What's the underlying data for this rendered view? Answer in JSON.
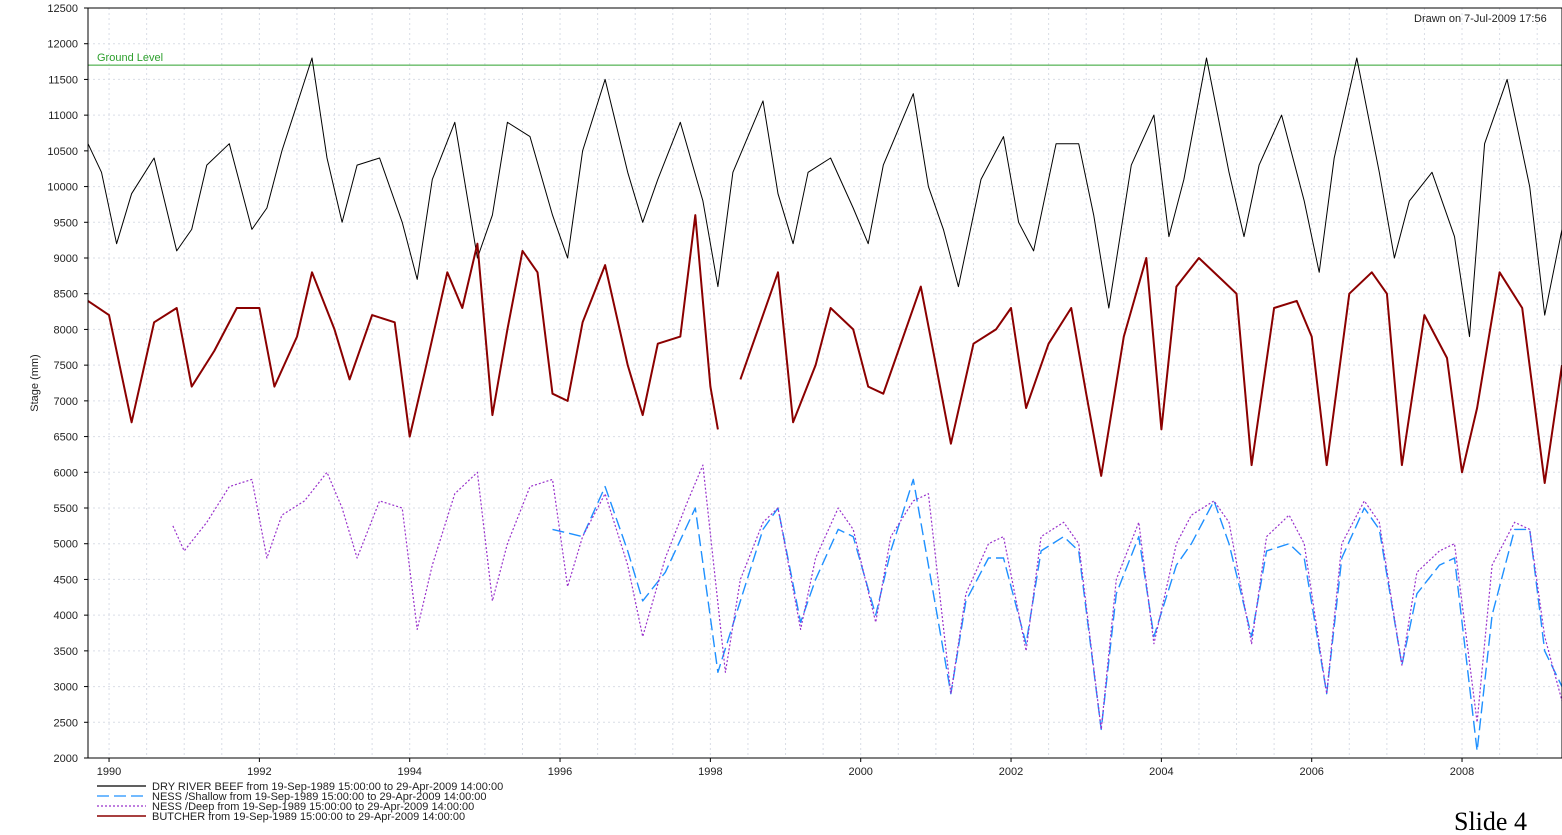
{
  "chart_data": {
    "type": "line",
    "ylabel": "Stage (mm)",
    "xlabel": "",
    "ylim": [
      2000,
      12500
    ],
    "xlim": [
      1989.72,
      2009.33
    ],
    "yticks": [
      "2000",
      "2500",
      "3000",
      "3500",
      "4000",
      "4500",
      "5000",
      "5500",
      "6000",
      "6500",
      "7000",
      "7500",
      "8000",
      "8500",
      "9000",
      "9500",
      "10000",
      "10500",
      "11000",
      "11500",
      "12000",
      "12500"
    ],
    "xticks": [
      "1990",
      "1992",
      "1994",
      "1996",
      "1998",
      "2000",
      "2002",
      "2004",
      "2006",
      "2008"
    ],
    "grid": true,
    "legend_position": "bottom-left",
    "drawn_on": "Drawn on  7-Jul-2009 17:56",
    "reference_line": {
      "label": "Ground Level",
      "value": 11700,
      "color": "#2ea02e"
    },
    "slide_label": "Slide 4",
    "series": [
      {
        "name": "DRY RIVER BEEF from 19-Sep-1989 15:00:00 to 29-Apr-2009 14:00:00",
        "color": "#000000",
        "style": "solid",
        "x": [
          1989.72,
          1989.9,
          1990.1,
          1990.3,
          1990.6,
          1990.9,
          1991.1,
          1991.3,
          1991.6,
          1991.9,
          1992.1,
          1992.3,
          1992.7,
          1992.9,
          1993.1,
          1993.3,
          1993.6,
          1993.9,
          1994.1,
          1994.3,
          1994.6,
          1994.9,
          1995.1,
          1995.3,
          1995.6,
          1995.9,
          1996.1,
          1996.3,
          1996.6,
          1996.9,
          1997.1,
          1997.3,
          1997.6,
          1997.9,
          1998.1,
          1998.3,
          1998.7,
          1998.9,
          1999.1,
          1999.3,
          1999.6,
          1999.9,
          2000.1,
          2000.3,
          2000.7,
          2000.9,
          2001.1,
          2001.3,
          2001.6,
          2001.9,
          2002.1,
          2002.3,
          2002.6,
          2002.9,
          2003.1,
          2003.3,
          2003.6,
          2003.9,
          2004.1,
          2004.3,
          2004.6,
          2004.9,
          2005.1,
          2005.3,
          2005.6,
          2005.9,
          2006.1,
          2006.3,
          2006.6,
          2006.9,
          2007.1,
          2007.3,
          2007.6,
          2007.9,
          2008.1,
          2008.3,
          2008.6,
          2008.9,
          2009.1,
          2009.33
        ],
        "y": [
          10600,
          10200,
          9200,
          9900,
          10400,
          9100,
          9400,
          10300,
          10600,
          9400,
          9700,
          10500,
          11800,
          10400,
          9500,
          10300,
          10400,
          9500,
          8700,
          10100,
          10900,
          9000,
          9600,
          10900,
          10700,
          9600,
          9000,
          10500,
          11500,
          10200,
          9500,
          10100,
          10900,
          9800,
          8600,
          10200,
          11200,
          9900,
          9200,
          10200,
          10400,
          9700,
          9200,
          10300,
          11300,
          10000,
          9400,
          8600,
          10100,
          10700,
          9500,
          9100,
          10600,
          10600,
          9600,
          8300,
          10300,
          11000,
          9300,
          10100,
          11800,
          10200,
          9300,
          10300,
          11000,
          9800,
          8800,
          10400,
          11800,
          10200,
          9000,
          9800,
          10200,
          9300,
          7900,
          10600,
          11500,
          10000,
          8200,
          9400
        ]
      },
      {
        "name": "NESS /Shallow from 19-Sep-1989 15:00:00 to 29-Apr-2009 14:00:00",
        "color": "#1e90ff",
        "style": "long-dash",
        "x": [
          1995.9,
          1996.1,
          1996.3,
          1996.6,
          1996.9,
          1997.1,
          1997.4,
          1997.8,
          1998.1,
          1998.4,
          1998.7,
          1998.9,
          1999.2,
          1999.4,
          1999.7,
          1999.9,
          2000.2,
          2000.4,
          2000.7,
          2000.9,
          2001.2,
          2001.4,
          2001.7,
          2001.9,
          2002.2,
          2002.4,
          2002.7,
          2002.9,
          2003.2,
          2003.4,
          2003.7,
          2003.9,
          2004.2,
          2004.4,
          2004.7,
          2004.9,
          2005.2,
          2005.4,
          2005.7,
          2005.9,
          2006.2,
          2006.4,
          2006.7,
          2006.9,
          2007.2,
          2007.4,
          2007.7,
          2007.9,
          2008.2,
          2008.4,
          2008.7,
          2008.9,
          2009.1,
          2009.33
        ],
        "y": [
          5200,
          5150,
          5100,
          5800,
          4900,
          4200,
          4600,
          5500,
          3200,
          4200,
          5200,
          5500,
          3900,
          4500,
          5200,
          5100,
          4000,
          4900,
          5900,
          4700,
          2900,
          4200,
          4800,
          4800,
          3600,
          4900,
          5100,
          4900,
          2400,
          4300,
          5100,
          3700,
          4700,
          5000,
          5600,
          5000,
          3700,
          4900,
          5000,
          4800,
          2900,
          4800,
          5500,
          5200,
          3300,
          4300,
          4700,
          4800,
          2100,
          4000,
          5200,
          5200,
          3500,
          3000
        ]
      },
      {
        "name": "NESS /Deep from 19-Sep-1989 15:00:00 to 29-Apr-2009 14:00:00",
        "color": "#9932cc",
        "style": "dotted",
        "x": [
          1990.85,
          1991.0,
          1991.3,
          1991.6,
          1991.9,
          1992.1,
          1992.3,
          1992.6,
          1992.9,
          1993.1,
          1993.3,
          1993.6,
          1993.9,
          1994.1,
          1994.3,
          1994.6,
          1994.9,
          1995.1,
          1995.3,
          1995.6,
          1995.9,
          1996.1,
          1996.3,
          1996.6,
          1996.9,
          1997.1,
          1997.4,
          1997.7,
          1997.9,
          1998.2,
          1998.4,
          1998.7,
          1998.9,
          1999.2,
          1999.4,
          1999.7,
          1999.9,
          2000.2,
          2000.4,
          2000.7,
          2000.9,
          2001.2,
          2001.4,
          2001.7,
          2001.9,
          2002.2,
          2002.4,
          2002.7,
          2002.9,
          2003.2,
          2003.4,
          2003.7,
          2003.9,
          2004.2,
          2004.4,
          2004.7,
          2004.9,
          2005.2,
          2005.4,
          2005.7,
          2005.9,
          2006.2,
          2006.4,
          2006.7,
          2006.9,
          2007.2,
          2007.4,
          2007.7,
          2007.9,
          2008.2,
          2008.4,
          2008.7,
          2008.9,
          2009.1,
          2009.33
        ],
        "y": [
          5250,
          4900,
          5300,
          5800,
          5900,
          4800,
          5400,
          5600,
          6000,
          5500,
          4800,
          5600,
          5500,
          3800,
          4700,
          5700,
          6000,
          4200,
          5000,
          5800,
          5900,
          4400,
          5100,
          5700,
          4700,
          3700,
          4800,
          5600,
          6100,
          3200,
          4500,
          5300,
          5500,
          3800,
          4800,
          5500,
          5200,
          3900,
          5100,
          5600,
          5700,
          2900,
          4300,
          5000,
          5100,
          3500,
          5100,
          5300,
          5000,
          2400,
          4500,
          5300,
          3600,
          5000,
          5400,
          5600,
          5300,
          3600,
          5100,
          5400,
          5000,
          2900,
          5000,
          5600,
          5300,
          3300,
          4600,
          4900,
          5000,
          2500,
          4700,
          5300,
          5200,
          3700,
          2800
        ]
      },
      {
        "name": "BUTCHER from 19-Sep-1989 15:00:00 to 29-Apr-2009 14:00:00",
        "color": "#8b0000",
        "style": "solid",
        "x": [
          1989.72,
          1990.0,
          1990.3,
          1990.6,
          1990.9,
          1991.1,
          1991.4,
          1991.7,
          1992.0,
          1992.2,
          1992.5,
          1992.7,
          1993.0,
          1993.2,
          1993.5,
          1993.8,
          1994.0,
          1994.2,
          1994.5,
          1994.7,
          1994.9,
          1995.1,
          1995.3,
          1995.5,
          1995.7,
          1995.9,
          1996.1,
          1996.3,
          1996.6,
          1996.9,
          1997.1,
          1997.3,
          1997.6,
          1997.8,
          1998.0,
          1998.1,
          null,
          1998.4,
          1998.7,
          1998.9,
          1999.1,
          1999.4,
          1999.6,
          1999.9,
          2000.1,
          2000.3,
          2000.6,
          2000.8,
          2001.0,
          2001.2,
          2001.5,
          2001.8,
          2002.0,
          2002.2,
          2002.5,
          2002.8,
          2003.0,
          2003.2,
          2003.5,
          2003.8,
          2004.0,
          2004.2,
          2004.5,
          2004.8,
          2005.0,
          2005.2,
          2005.5,
          2005.8,
          2006.0,
          2006.2,
          2006.5,
          2006.8,
          2007.0,
          2007.2,
          2007.5,
          2007.8,
          2008.0,
          2008.2,
          2008.5,
          2008.8,
          2009.1,
          2009.33
        ],
        "y": [
          8400,
          8200,
          6700,
          8100,
          8300,
          7200,
          7700,
          8300,
          8300,
          7200,
          7900,
          8800,
          8000,
          7300,
          8200,
          8100,
          6500,
          7400,
          8800,
          8300,
          9200,
          6800,
          8000,
          9100,
          8800,
          7100,
          7000,
          8100,
          8900,
          7500,
          6800,
          7800,
          7900,
          9600,
          7200,
          6600,
          null,
          7300,
          8200,
          8800,
          6700,
          7500,
          8300,
          8000,
          7200,
          7100,
          8000,
          8600,
          7500,
          6400,
          7800,
          8000,
          8300,
          6900,
          7800,
          8300,
          7100,
          5950,
          7900,
          9000,
          6600,
          8600,
          9000,
          8700,
          8500,
          6100,
          8300,
          8400,
          7900,
          6100,
          8500,
          8800,
          8500,
          6100,
          8200,
          7600,
          6000,
          6900,
          8800,
          8300,
          5850,
          7500
        ]
      }
    ]
  }
}
